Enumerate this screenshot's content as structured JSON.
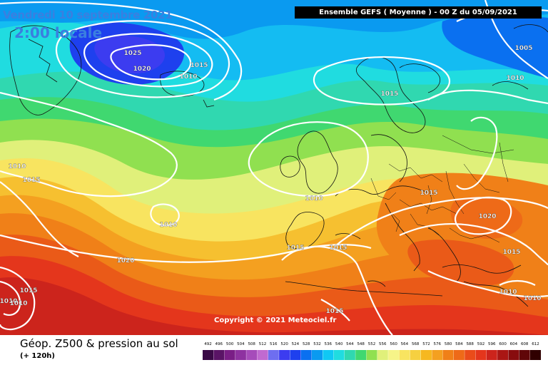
{
  "header": {
    "date": "Vendredi 10 septembre 2021",
    "time": "2:00 locale",
    "model": "Ensemble GEFS  ( Moyenne )  -  00 Z du 05/09/2021"
  },
  "footer": {
    "title": "Géop. Z500 & pression au sol",
    "subtitle": "(+ 120h)"
  },
  "copyright": "Copyright © 2021 Meteociel.fr",
  "legend": {
    "values": [
      "492",
      "496",
      "500",
      "504",
      "508",
      "512",
      "516",
      "520",
      "524",
      "528",
      "532",
      "536",
      "540",
      "544",
      "548",
      "552",
      "556",
      "560",
      "564",
      "568",
      "572",
      "576",
      "580",
      "584",
      "588",
      "592",
      "596",
      "600",
      "604",
      "608",
      "612"
    ],
    "colors": [
      "#3a0a46",
      "#5a1466",
      "#7a1e86",
      "#8e32a0",
      "#a64cba",
      "#c06ad0",
      "#6e6ef0",
      "#3c3cf0",
      "#1e40ee",
      "#0a70f0",
      "#0a9af0",
      "#10c8f4",
      "#20dce0",
      "#30d8b0",
      "#40d870",
      "#90e050",
      "#e0f07a",
      "#f6f488",
      "#f8e460",
      "#f6d040",
      "#f6b820",
      "#f4a020",
      "#f08018",
      "#ee6a18",
      "#ea4c1a",
      "#e4361c",
      "#cc241c",
      "#aa1614",
      "#880c0e",
      "#600608",
      "#300000"
    ]
  },
  "isobars": [
    {
      "label": "1025"
    },
    {
      "label": "1020"
    },
    {
      "label": "1015"
    },
    {
      "label": "1010"
    },
    {
      "label": "1005"
    },
    {
      "label": "1010"
    },
    {
      "label": "1015"
    },
    {
      "label": "1010"
    },
    {
      "label": "1015"
    },
    {
      "label": "1010"
    },
    {
      "label": "1010"
    },
    {
      "label": "1015"
    },
    {
      "label": "1020"
    },
    {
      "label": "1020"
    },
    {
      "label": "1015"
    },
    {
      "label": "1015"
    },
    {
      "label": "1015"
    },
    {
      "label": "1010"
    },
    {
      "label": "1010"
    },
    {
      "label": "1015"
    },
    {
      "label": "1015"
    },
    {
      "label": "1010"
    },
    {
      "label": "1010"
    }
  ]
}
